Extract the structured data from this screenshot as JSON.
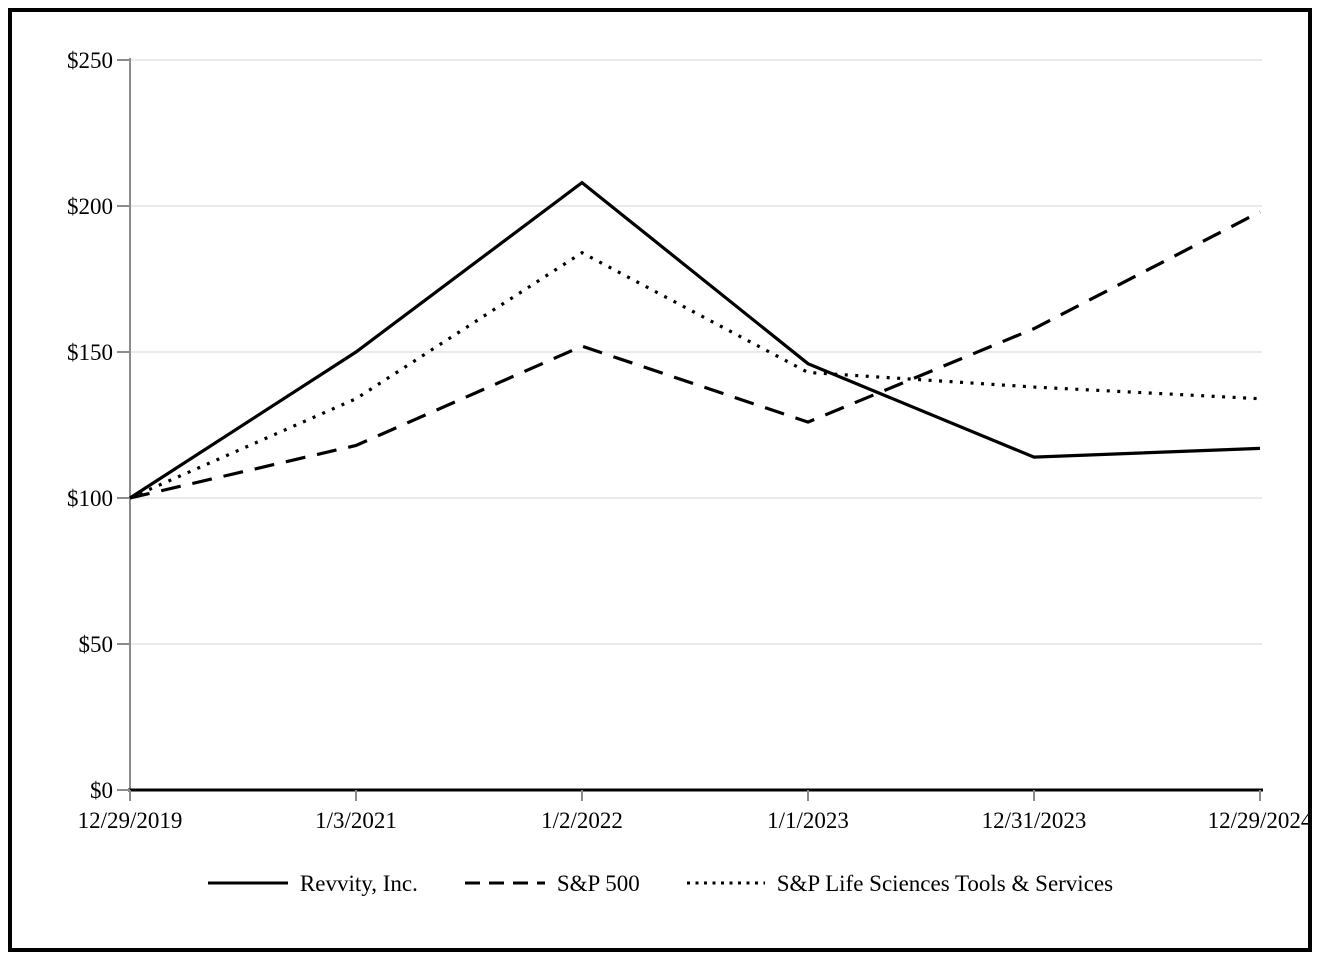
{
  "page": {
    "background_color": "#ffffff",
    "border_color": "#000000"
  },
  "chart_data": {
    "type": "line",
    "title": "",
    "xlabel": "",
    "ylabel": "",
    "x_labels": [
      "12/29/2019",
      "1/3/2021",
      "1/2/2022",
      "1/1/2023",
      "12/31/2023",
      "12/29/2024"
    ],
    "y_tick_labels": [
      "$0",
      "$50",
      "$100",
      "$150",
      "$200",
      "$250"
    ],
    "y_tick_values": [
      0,
      50,
      100,
      150,
      200,
      250
    ],
    "ylim": [
      0,
      250
    ],
    "grid": "horizontal gridlines at each $50 level",
    "legend_position": "bottom-center",
    "series": [
      {
        "name": "Revvity, Inc.",
        "style": "solid",
        "values": [
          100,
          150,
          208,
          146,
          114,
          117
        ]
      },
      {
        "name": "S&P 500",
        "style": "dashed",
        "values": [
          100,
          118,
          152,
          126,
          158,
          198
        ]
      },
      {
        "name": "S&P Life Sciences Tools & Services",
        "style": "dotted",
        "values": [
          100,
          134,
          184,
          143,
          138,
          134
        ]
      }
    ],
    "colors": {
      "series_line": "#000000",
      "gridline": "#eaeaea",
      "y_axis_and_ticks": "#8c8c8c",
      "x_axis_baseline": "#000000",
      "text": "#000000"
    }
  }
}
